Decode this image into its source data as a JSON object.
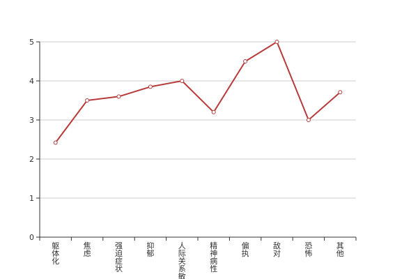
{
  "chart_data": {
    "type": "line",
    "title": "",
    "xlabel": "",
    "ylabel": "",
    "categories": [
      "躯体化",
      "焦虑",
      "强迫症状",
      "抑郁",
      "人际关系敏感",
      "精神病性",
      "偏执",
      "敌对",
      "恐怖",
      "其他"
    ],
    "series": [
      {
        "name": "",
        "values": [
          2.42,
          3.5,
          3.6,
          3.85,
          4.0,
          3.2,
          4.5,
          5.0,
          3.0,
          3.71
        ]
      }
    ],
    "ylim": [
      0,
      5
    ],
    "yticks": [
      0,
      1,
      2,
      3,
      4,
      5
    ],
    "grid": true,
    "legend": "none",
    "line_color": "#b83b3b",
    "marker_fill": "#ffffff",
    "grid_color": "#cccccc",
    "axis_color": "#333333"
  }
}
